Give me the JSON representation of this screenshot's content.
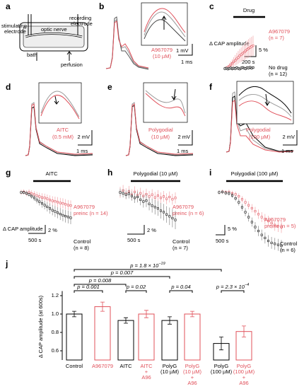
{
  "a": {
    "letter": "a",
    "stimulating": [
      "stimulating",
      "electrode"
    ],
    "recording": [
      "recording",
      "electrode"
    ],
    "nerve": "optic nerve",
    "bath": "bath",
    "perfusion": "perfusion"
  },
  "b": {
    "letter": "b",
    "drug": [
      "A967079",
      "(10 µM)"
    ],
    "scale_v": "1 mV",
    "scale_t": "1 ms"
  },
  "c": {
    "letter": "c",
    "bar_label": "Drug",
    "y_label": "Δ CAP amplitude",
    "scale_v": "5 %",
    "scale_t": "200 s",
    "series": [
      {
        "name": "A967079",
        "n": "(n = 7)",
        "color": "#e0505a",
        "values": [
          0,
          0.3,
          0.6,
          1.2,
          1.8,
          2.5,
          3.2,
          3.9,
          4.6,
          5.3,
          6,
          6.6,
          7.2,
          7.8,
          8.4,
          9,
          9.5,
          10,
          10.4,
          10.8
        ],
        "errors": [
          0.5,
          0.8,
          1,
          1.3,
          1.6,
          1.9,
          2.2,
          2.5,
          2.8,
          3,
          3.2,
          3.4,
          3.6,
          3.8,
          4,
          4.2,
          4.4,
          4.5,
          4.6,
          4.7
        ]
      },
      {
        "name": "No drug",
        "n": "(n = 12)",
        "color": "#000000",
        "values": [
          0,
          0.2,
          -0.2,
          0.1,
          0.3,
          -0.1,
          0.2,
          0,
          0.4,
          0.1,
          -0.2,
          0.3,
          0.5,
          0.2,
          0,
          0.4,
          0.3,
          0.6,
          0.2,
          0.5
        ],
        "errors": [
          0.8,
          0.8,
          0.8,
          0.8,
          0.8,
          0.8,
          0.8,
          0.8,
          0.8,
          0.8,
          0.8,
          0.8,
          0.8,
          0.8,
          0.8,
          0.8,
          0.8,
          0.8,
          0.8,
          0.8
        ]
      }
    ]
  },
  "d": {
    "letter": "d",
    "drug": [
      "AITC",
      "(0.5 mM)"
    ],
    "scale_v": "2 mV",
    "scale_t": "1 ms"
  },
  "e": {
    "letter": "e",
    "drug": [
      "Polygodial",
      "(10 µM)"
    ],
    "scale_v": "2 mV",
    "scale_t": "1 ms"
  },
  "f": {
    "letter": "f",
    "drug": [
      "Polygodial",
      "(100 µM)"
    ],
    "scale_v": "2 mV",
    "scale_t": "1 ms"
  },
  "g": {
    "letter": "g",
    "bar_label": "AITC",
    "y_label": "Δ CAP amplitude",
    "scale_v": "2 %",
    "scale_t": "500 s",
    "series": [
      {
        "name": "A967079",
        "n": "preinc (n = 14)",
        "color": "#e0505a",
        "values": [
          0,
          0.1,
          -0.2,
          0,
          -0.3,
          -0.5,
          -0.8,
          -1,
          -1.2,
          -1.3,
          -1.5,
          -1.8,
          -2,
          -2.1,
          -2.3,
          -2.5,
          -2.6,
          -2.8,
          -3,
          -3.1
        ],
        "errors": [
          0.6,
          0.6,
          0.7,
          0.7,
          0.8,
          0.8,
          0.9,
          0.9,
          1,
          1,
          1,
          1.1,
          1.1,
          1.1,
          1.2,
          1.2,
          1.2,
          1.2,
          1.2,
          1.2
        ]
      },
      {
        "name": "Control",
        "n": "(n = 8)",
        "color": "#000000",
        "values": [
          0,
          0,
          -0.2,
          -0.5,
          -0.9,
          -1.3,
          -1.8,
          -2.2,
          -2.6,
          -3,
          -3.4,
          -3.8,
          -4.2,
          -4.5,
          -4.8,
          -5.1,
          -5.4,
          -5.6,
          -5.8,
          -6
        ],
        "errors": [
          0.3,
          0.4,
          0.4,
          0.5,
          0.6,
          0.7,
          0.8,
          0.9,
          1,
          1,
          1.1,
          1.2,
          1.2,
          1.3,
          1.3,
          1.4,
          1.4,
          1.5,
          1.5,
          1.5
        ]
      }
    ]
  },
  "h": {
    "letter": "h",
    "bar_label": "Polygodial (10 µM)",
    "scale_v": "2 %",
    "scale_t": "500 s",
    "series": [
      {
        "name": "A967079",
        "n": "preinc (n = 6)",
        "color": "#e0505a",
        "values": [
          0,
          0.4,
          -0.3,
          0.2,
          -0.5,
          0.1,
          -0.6,
          -0.2,
          -0.8,
          -0.4,
          -0.9,
          -0.5,
          -1.1,
          -0.7,
          -1.2,
          -0.9,
          -1.4,
          -1,
          -1.5,
          -1.2
        ],
        "errors": [
          1.2,
          1.2,
          1.2,
          1.2,
          1.2,
          1.2,
          1.2,
          1.2,
          1.2,
          1.2,
          1.2,
          1.2,
          1.2,
          1.2,
          1.2,
          1.2,
          1.2,
          1.2,
          1.2,
          1.2
        ]
      },
      {
        "name": "Control",
        "n": "(n = 7)",
        "color": "#000000",
        "values": [
          0,
          -0.2,
          -0.5,
          -0.3,
          -0.8,
          -1.2,
          -1,
          -1.6,
          -2,
          -1.8,
          -2.5,
          -2.9,
          -3.2,
          -3.5,
          -4,
          -4.3,
          -4.8,
          -5.2,
          -5.6,
          -6
        ],
        "errors": [
          0.8,
          0.9,
          0.9,
          1,
          1,
          1.1,
          1.2,
          1.2,
          1.3,
          1.4,
          1.4,
          1.5,
          1.6,
          1.6,
          1.7,
          1.8,
          1.8,
          1.9,
          2,
          2
        ]
      }
    ]
  },
  "i": {
    "letter": "i",
    "bar_label": "Polygodial (100 µM)",
    "scale_v": "5 %",
    "scale_t": "500 s",
    "series": [
      {
        "name": "A967079",
        "n": "preinc (n = 5)",
        "color": "#e0505a",
        "values": [
          0,
          0.3,
          0,
          0.2,
          -0.5,
          -1,
          -2,
          -3.5,
          -5,
          -6.5,
          -8,
          -9.5,
          -11,
          -12.5,
          -13.5,
          -14.5,
          -15.5,
          -16.5,
          -17,
          -17.5
        ],
        "errors": [
          1,
          1,
          1.1,
          1.2,
          1.3,
          1.4,
          1.5,
          1.6,
          1.8,
          2,
          2.1,
          2.2,
          2.4,
          2.5,
          2.6,
          2.7,
          2.8,
          2.9,
          3,
          3
        ]
      },
      {
        "name": "Control",
        "n": "(n = 6)",
        "color": "#000000",
        "values": [
          0,
          0.2,
          -0.3,
          -0.5,
          -1.5,
          -3,
          -5,
          -7.5,
          -10,
          -12.5,
          -15,
          -17.5,
          -19.5,
          -21.5,
          -23,
          -24.5,
          -25.5,
          -26,
          -26.5,
          -27
        ],
        "errors": [
          1,
          1,
          1.1,
          1.2,
          1.3,
          1.5,
          1.6,
          1.8,
          2,
          2.2,
          2.3,
          2.5,
          2.6,
          2.7,
          2.8,
          2.9,
          3,
          3,
          3,
          3
        ]
      }
    ]
  },
  "chart_data": {
    "type": "bar",
    "letter": "j",
    "y_label": "Δ CAP amplitude (at 600s)",
    "categories": [
      "Control",
      "A967079",
      "AITC",
      "AITC\n+\nA96",
      "PolyG\n(10 µM)",
      "PolyG\n(10 µM)\n+\nA96",
      "PolyG\n(100 µM)",
      "PolyG\n(100 µM)\n+\nA96"
    ],
    "values": [
      1.0,
      1.08,
      0.93,
      1.0,
      0.93,
      1.0,
      0.68,
      0.81
    ],
    "errors": [
      0.03,
      0.05,
      0.03,
      0.04,
      0.04,
      0.03,
      0.07,
      0.06
    ],
    "colors": [
      "#000000",
      "#e0505a",
      "#000000",
      "#e0505a",
      "#000000",
      "#e0505a",
      "#000000",
      "#e0505a"
    ],
    "ylim": [
      0.5,
      1.25
    ],
    "yticks": [
      0.6,
      0.8,
      {
        "value": 1,
        "label": "1.0"
      },
      1.2
    ],
    "brackets": [
      {
        "text": "p = 1.8 × 10",
        "sup": "−19"
      },
      {
        "text": "p = 0.007"
      },
      {
        "text": "p = 0.008"
      },
      {
        "text": "p = 0.001"
      },
      {
        "text": "p = 0.02"
      },
      {
        "text": "p = 0.04"
      },
      {
        "text": "p = 2.3 × 10",
        "sup": "−4"
      }
    ]
  }
}
